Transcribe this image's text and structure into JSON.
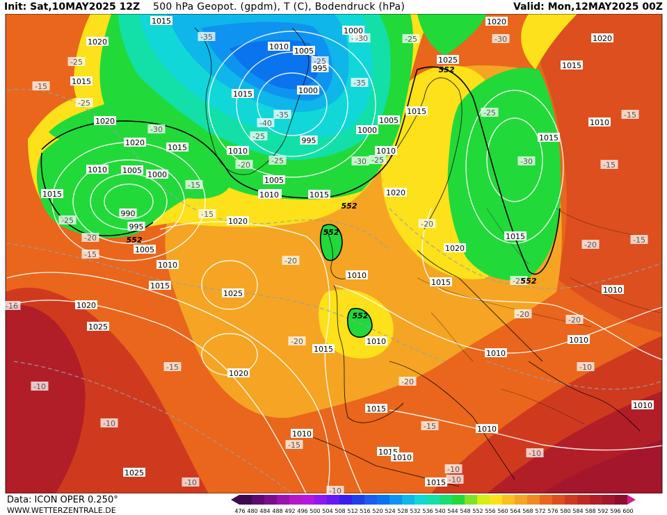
{
  "header": {
    "init": "Init: Sat,10MAY2025 12Z",
    "title": "500 hPa Geopot. (gpdm), T (C), Bodendruck (hPa)",
    "valid": "Valid: Mon,12MAY2025 00Z"
  },
  "footer": {
    "data_source": "Data: ICON OPER 0.250°",
    "website": "WWW.WETTERZENTRALE.DE"
  },
  "colors": {
    "deep_red": "#a3162b",
    "red": "#cf3a1f",
    "orange": "#e9661c",
    "light_orange": "#f5a523",
    "yellow": "#fde11a",
    "green": "#22d93a",
    "cyan": "#12d7d8",
    "blue": "#0a73ee"
  },
  "legend": {
    "values": [
      "476",
      "480",
      "484",
      "488",
      "492",
      "496",
      "500",
      "504",
      "508",
      "512",
      "516",
      "520",
      "524",
      "528",
      "532",
      "536",
      "540",
      "544",
      "548",
      "552",
      "556",
      "560",
      "564",
      "568",
      "572",
      "576",
      "580",
      "584",
      "588",
      "592",
      "596",
      "600"
    ],
    "colors": [
      "#3d0a4f",
      "#5b0c6e",
      "#7a0f8e",
      "#9a12b0",
      "#b616c9",
      "#b617e0",
      "#8f17ef",
      "#6a18f3",
      "#3a1ef0",
      "#1f3fea",
      "#1a5cf0",
      "#0a73ee",
      "#0f93f0",
      "#0eb6ea",
      "#12d7d8",
      "#12e0a8",
      "#17df70",
      "#22d93a",
      "#7fe22a",
      "#d3ef14",
      "#fde11a",
      "#f9c01f",
      "#f5a523",
      "#f08a22",
      "#e9661c",
      "#dd4f1e",
      "#cf3a1f",
      "#c12a22",
      "#b11e27",
      "#a3162b",
      "#8c0f2e",
      "#d61b8c"
    ]
  },
  "map": {
    "geopotential_labels": [
      {
        "text": "552"
      },
      {
        "text": "552"
      },
      {
        "text": "552"
      },
      {
        "text": "552"
      },
      {
        "text": "552"
      },
      {
        "text": "552"
      }
    ],
    "pressure_labels": [
      {
        "text": "1015"
      },
      {
        "text": "1020"
      },
      {
        "text": "1015"
      },
      {
        "text": "1020"
      },
      {
        "text": "1020"
      },
      {
        "text": "1010"
      },
      {
        "text": "1005"
      },
      {
        "text": "1000"
      },
      {
        "text": "1015"
      },
      {
        "text": "990"
      },
      {
        "text": "995"
      },
      {
        "text": "1005"
      },
      {
        "text": "1010"
      },
      {
        "text": "1015"
      },
      {
        "text": "1020"
      },
      {
        "text": "1025"
      },
      {
        "text": "1025"
      },
      {
        "text": "1020"
      },
      {
        "text": "1025"
      },
      {
        "text": "1020"
      },
      {
        "text": "1015"
      },
      {
        "text": "1010"
      },
      {
        "text": "1015"
      },
      {
        "text": "1010"
      },
      {
        "text": "1010"
      },
      {
        "text": "1000"
      },
      {
        "text": "1010"
      },
      {
        "text": "1005"
      },
      {
        "text": "995"
      },
      {
        "text": "1000"
      },
      {
        "text": "1015"
      },
      {
        "text": "1000"
      },
      {
        "text": "995"
      },
      {
        "text": "1005"
      },
      {
        "text": "1010"
      },
      {
        "text": "1010"
      },
      {
        "text": "1005"
      },
      {
        "text": "1015"
      },
      {
        "text": "1020"
      },
      {
        "text": "1020"
      },
      {
        "text": "1015"
      },
      {
        "text": "1010"
      },
      {
        "text": "1015"
      },
      {
        "text": "1020"
      },
      {
        "text": "1025"
      },
      {
        "text": "1020"
      },
      {
        "text": "1015"
      },
      {
        "text": "1010"
      },
      {
        "text": "1015"
      },
      {
        "text": "1010"
      },
      {
        "text": "1010"
      },
      {
        "text": "1010"
      },
      {
        "text": "1010"
      },
      {
        "text": "1010"
      },
      {
        "text": "1015"
      },
      {
        "text": "1015"
      },
      {
        "text": "1015"
      },
      {
        "text": "1010"
      },
      {
        "text": "1015"
      },
      {
        "text": "1010"
      }
    ],
    "temperature_labels": [
      {
        "text": "-25"
      },
      {
        "text": "-15"
      },
      {
        "text": "-25"
      },
      {
        "text": "-30"
      },
      {
        "text": "-35"
      },
      {
        "text": "-30"
      },
      {
        "text": "-25"
      },
      {
        "text": "-35"
      },
      {
        "text": "-40"
      },
      {
        "text": "-35"
      },
      {
        "text": "-25"
      },
      {
        "text": "-30"
      },
      {
        "text": "-25"
      },
      {
        "text": "-20"
      },
      {
        "text": "-15"
      },
      {
        "text": "-15"
      },
      {
        "text": "-25"
      },
      {
        "text": "-20"
      },
      {
        "text": "-15"
      },
      {
        "text": "-16"
      },
      {
        "text": "-10"
      },
      {
        "text": "-10"
      },
      {
        "text": "-15"
      },
      {
        "text": "-20"
      },
      {
        "text": "-20"
      },
      {
        "text": "-20"
      },
      {
        "text": "-20"
      },
      {
        "text": "-15"
      },
      {
        "text": "-15"
      },
      {
        "text": "-10"
      },
      {
        "text": "-10"
      },
      {
        "text": "-10"
      },
      {
        "text": "-20"
      },
      {
        "text": "-25"
      },
      {
        "text": "-30"
      },
      {
        "text": "-25"
      },
      {
        "text": "-30"
      },
      {
        "text": "-30"
      },
      {
        "text": "-25"
      },
      {
        "text": "-20"
      },
      {
        "text": "-20"
      },
      {
        "text": "-15"
      },
      {
        "text": "-15"
      },
      {
        "text": "-15"
      },
      {
        "text": "-10"
      },
      {
        "text": "-10"
      },
      {
        "text": "-10"
      },
      {
        "text": "-25"
      }
    ]
  }
}
